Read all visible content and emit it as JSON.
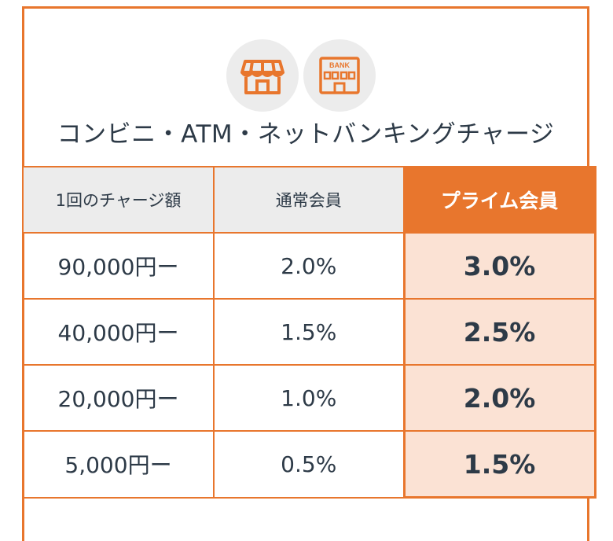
{
  "icons": {
    "store": "convenience-store-icon",
    "bank": "bank-icon",
    "bank_sign": "BANK"
  },
  "heading": "コンビニ・ATM・ネットバンキングチャージ",
  "table": {
    "headers": {
      "amount": "1回のチャージ額",
      "regular": "通常会員",
      "prime": "プライム会員"
    },
    "rows": [
      {
        "amount": "90,000円ー",
        "regular": "2.0%",
        "prime": "3.0%"
      },
      {
        "amount": "40,000円ー",
        "regular": "1.5%",
        "prime": "2.5%"
      },
      {
        "amount": "20,000円ー",
        "regular": "1.0%",
        "prime": "2.0%"
      },
      {
        "amount": "5,000円ー",
        "regular": "0.5%",
        "prime": "1.5%"
      }
    ]
  },
  "colors": {
    "accent": "#e8762d",
    "prime_cell_bg": "#fbe2d4",
    "header_bg": "#ececec",
    "text": "#2d3a47"
  }
}
